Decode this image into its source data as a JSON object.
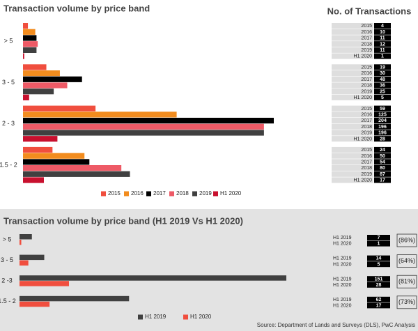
{
  "charts": [
    {
      "chart_data": {
        "type": "bar",
        "orientation": "horizontal",
        "title": "Transaction volume by price band",
        "table_title": "No. of Transactions",
        "categories": [
          "> 5",
          "3 - 5",
          "2 - 3",
          "1.5 - 2"
        ],
        "series": [
          {
            "name": "2015",
            "color": "#f04e3e",
            "values": [
              4,
              19,
              59,
              24
            ]
          },
          {
            "name": "2016",
            "color": "#f28c1e",
            "values": [
              10,
              30,
              125,
              50
            ]
          },
          {
            "name": "2017",
            "color": "#000000",
            "values": [
              11,
              48,
              204,
              54
            ]
          },
          {
            "name": "2018",
            "color": "#ee5a66",
            "values": [
              12,
              36,
              196,
              80
            ]
          },
          {
            "name": "2019",
            "color": "#404040",
            "values": [
              11,
              25,
              196,
              87
            ]
          },
          {
            "name": "H1 2020",
            "color": "#c8102e",
            "values": [
              1,
              5,
              28,
              17
            ]
          }
        ]
      }
    },
    {
      "chart_data": {
        "type": "bar",
        "orientation": "horizontal",
        "title": "Transaction volume by price band (H1 2019 Vs H1 2020)",
        "categories": [
          "> 5",
          "3 - 5",
          "2 -3",
          "1.5 - 2"
        ],
        "series": [
          {
            "name": "H1 2019",
            "color": "#404040",
            "values": [
              7,
              14,
              151,
              62
            ]
          },
          {
            "name": "H1 2020",
            "color": "#f04e3e",
            "values": [
              1,
              5,
              28,
              17
            ]
          }
        ],
        "change_labels": [
          "(86%)",
          "(64%)",
          "(81%)",
          "(73%)"
        ],
        "source": "Source: Department of Lands and Surveys (DLS), PwC Analysis"
      }
    }
  ]
}
